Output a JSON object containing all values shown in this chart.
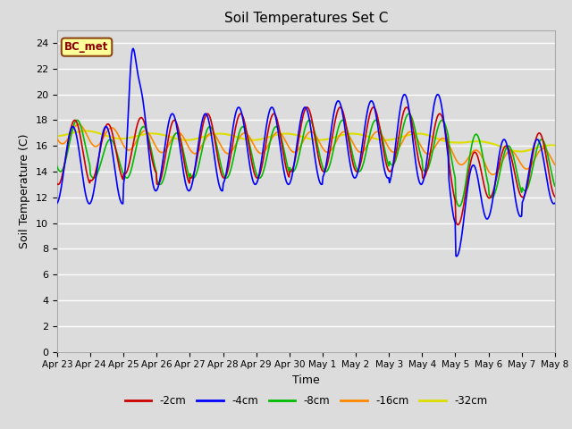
{
  "title": "Soil Temperatures Set C",
  "xlabel": "Time",
  "ylabel": "Soil Temperature (C)",
  "ylim": [
    0,
    25
  ],
  "yticks": [
    0,
    2,
    4,
    6,
    8,
    10,
    12,
    14,
    16,
    18,
    20,
    22,
    24
  ],
  "xtick_labels": [
    "Apr 23",
    "Apr 24",
    "Apr 25",
    "Apr 26",
    "Apr 27",
    "Apr 28",
    "Apr 29",
    "Apr 30",
    "May 1",
    "May 2",
    "May 3",
    "May 4",
    "May 5",
    "May 6",
    "May 7",
    "May 8"
  ],
  "series": {
    "-2cm": {
      "color": "#cc0000",
      "lw": 1.2
    },
    "-4cm": {
      "color": "#0000ff",
      "lw": 1.2
    },
    "-8cm": {
      "color": "#00bb00",
      "lw": 1.2
    },
    "-16cm": {
      "color": "#ff8800",
      "lw": 1.2
    },
    "-32cm": {
      "color": "#dddd00",
      "lw": 1.5
    }
  },
  "annotation": "BC_met",
  "annotation_color": "#8b0000",
  "annotation_bg": "#ffff99",
  "annotation_edge": "#8b4513",
  "bg_color": "#dcdcdc",
  "fig_bg_color": "#dcdcdc"
}
